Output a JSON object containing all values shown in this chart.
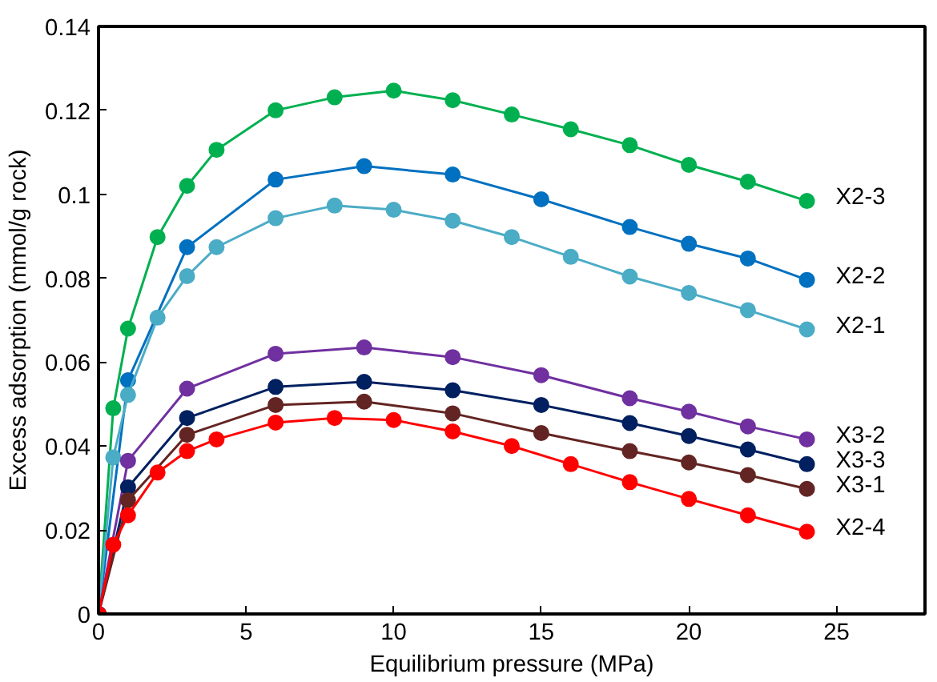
{
  "chart_data": {
    "type": "line",
    "xlabel": "Equilibrium pressure (MPa)",
    "ylabel": "Excess adsorption (mmol/g rock)",
    "xlim": [
      0,
      28
    ],
    "ylim": [
      0,
      0.14
    ],
    "xticks": [
      0,
      5,
      10,
      15,
      20,
      25
    ],
    "yticks": [
      0,
      0.02,
      0.04,
      0.06,
      0.08,
      0.1,
      0.12,
      0.14
    ],
    "grid": false,
    "marker": "circle",
    "line_style": "solid",
    "series": [
      {
        "name": "X2-3",
        "color": "#00b050",
        "x": [
          0,
          0.5,
          1,
          2,
          3,
          4,
          6,
          8,
          10,
          12,
          14,
          16,
          18,
          20,
          22,
          24
        ],
        "values": [
          0,
          0.049,
          0.068,
          0.0898,
          0.102,
          0.1106,
          0.12,
          0.1231,
          0.1247,
          0.1224,
          0.119,
          0.1155,
          0.1117,
          0.107,
          0.103,
          0.0984
        ]
      },
      {
        "name": "X2-2",
        "color": "#0070c0",
        "x": [
          0,
          1,
          3,
          6,
          9,
          12,
          15,
          18,
          20,
          22,
          24
        ],
        "values": [
          0,
          0.0557,
          0.0874,
          0.1035,
          0.1067,
          0.1047,
          0.0988,
          0.0922,
          0.0882,
          0.0847,
          0.0796
        ]
      },
      {
        "name": "X2-1",
        "color": "#4bacc6",
        "x": [
          0,
          0.5,
          1,
          2,
          3,
          4,
          6,
          8,
          10,
          12,
          14,
          16,
          18,
          20,
          22,
          24
        ],
        "values": [
          0,
          0.0373,
          0.0522,
          0.0706,
          0.0805,
          0.0874,
          0.0943,
          0.0973,
          0.0963,
          0.0937,
          0.0898,
          0.0851,
          0.0804,
          0.0765,
          0.0724,
          0.0678
        ]
      },
      {
        "name": "X3-2",
        "color": "#7030a0",
        "x": [
          0,
          1,
          3,
          6,
          9,
          12,
          15,
          18,
          20,
          22,
          24
        ],
        "values": [
          0,
          0.0365,
          0.0537,
          0.062,
          0.0635,
          0.0612,
          0.0569,
          0.0514,
          0.0482,
          0.0447,
          0.0416
        ]
      },
      {
        "name": "X3-3",
        "color": "#002060",
        "x": [
          0,
          1,
          3,
          6,
          9,
          12,
          15,
          18,
          20,
          22,
          24
        ],
        "values": [
          0,
          0.0302,
          0.0467,
          0.0541,
          0.0553,
          0.0533,
          0.0498,
          0.0455,
          0.0424,
          0.0392,
          0.0357
        ]
      },
      {
        "name": "X3-1",
        "color": "#632523",
        "x": [
          0,
          1,
          3,
          6,
          9,
          12,
          15,
          18,
          20,
          22,
          24
        ],
        "values": [
          0,
          0.0271,
          0.0427,
          0.0498,
          0.0506,
          0.0478,
          0.0431,
          0.0388,
          0.0361,
          0.0331,
          0.0298
        ]
      },
      {
        "name": "X2-4",
        "color": "#ff0000",
        "x": [
          0,
          0.5,
          1,
          2,
          3,
          4,
          6,
          8,
          10,
          12,
          14,
          16,
          18,
          20,
          22,
          24
        ],
        "values": [
          0,
          0.0165,
          0.0235,
          0.0337,
          0.0388,
          0.0416,
          0.0456,
          0.0467,
          0.0462,
          0.0435,
          0.04,
          0.0357,
          0.0314,
          0.0274,
          0.0235,
          0.0196
        ]
      }
    ]
  }
}
